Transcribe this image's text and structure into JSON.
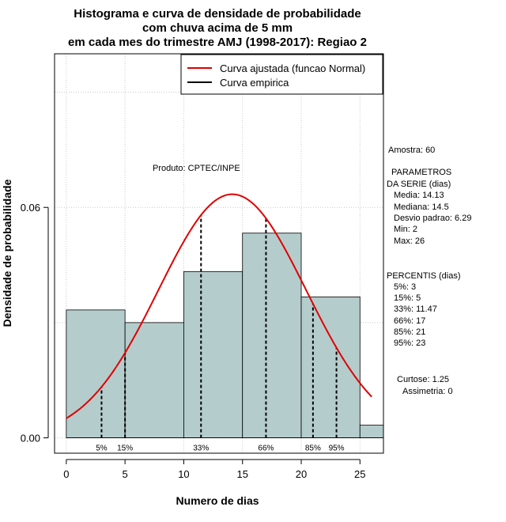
{
  "chart_data": {
    "type": "bar",
    "title_lines": [
      "Histograma e curva de densidade de probabilidade",
      "com chuva acima de 5 mm",
      "em cada mes do trimestre AMJ (1998-2017): Regiao 2"
    ],
    "xlabel": "Numero de dias",
    "ylabel": "Densidade de probabilidade",
    "xlim": [
      -1,
      27
    ],
    "ylim": [
      -0.004,
      0.1
    ],
    "x_ticks": [
      0,
      5,
      10,
      15,
      20,
      25
    ],
    "y_ticks": [
      0.0,
      0.06
    ],
    "y_tick_labels": [
      "0.00",
      "0.06"
    ],
    "grid": true,
    "bins": [
      {
        "x0": 0,
        "x1": 5,
        "density": 0.0333
      },
      {
        "x0": 5,
        "x1": 10,
        "density": 0.03
      },
      {
        "x0": 10,
        "x1": 15,
        "density": 0.0433
      },
      {
        "x0": 15,
        "x1": 20,
        "density": 0.0533
      },
      {
        "x0": 20,
        "x1": 25,
        "density": 0.0367
      },
      {
        "x0": 25,
        "x1": 27,
        "density": 0.0033
      }
    ],
    "bar_color": "#b5cccc",
    "series": [
      {
        "name": "Curva ajustada (funcao Normal)",
        "type": "normal",
        "mean": 14.13,
        "sd": 6.29,
        "x_range": [
          0,
          26
        ],
        "color": "#e00000"
      },
      {
        "name": "Curva empirica",
        "type": "line",
        "color": "#000000"
      }
    ],
    "legend_position": "top-right",
    "percentile_lines": [
      {
        "label": "5%",
        "x": 3
      },
      {
        "label": "15%",
        "x": 5
      },
      {
        "label": "33%",
        "x": 11.47
      },
      {
        "label": "66%",
        "x": 17
      },
      {
        "label": "85%",
        "x": 21
      },
      {
        "label": "95%",
        "x": 23
      }
    ],
    "annotation": "Produto: CPTEC/INPE"
  },
  "stats": {
    "amostra": "Amostra: 60",
    "param_title_1": "PARAMETROS",
    "param_title_2": "DA SERIE (dias)",
    "media": "Media: 14.13",
    "mediana": "Mediana: 14.5",
    "desvio": "Desvio padrao: 6.29",
    "min": "Min: 2",
    "max": "Max: 26",
    "percentis_title": "PERCENTIS (dias)",
    "p5": "5%: 3",
    "p15": "15%: 5",
    "p33": "33%: 11.47",
    "p66": "66%: 17",
    "p85": "85%: 21",
    "p95": "95%: 23",
    "curtose": "Curtose: 1.25",
    "assimetria": "Assimetria: 0"
  }
}
